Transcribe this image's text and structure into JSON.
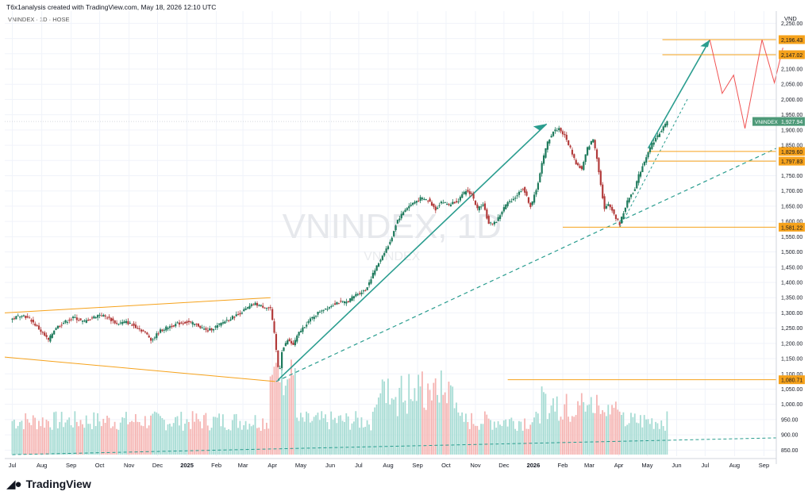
{
  "header": {
    "caption": "T6x1analysis created with TradingView.com, May 18, 2026 12:10 UTC",
    "symbol_line": "VNINDEX · 1D · HOSE"
  },
  "footer": {
    "logo_icon": "tradingview-logo-icon",
    "brand": "TradingView"
  },
  "chart_data": {
    "type": "candlestick",
    "watermark": "VNINDEX, 1D",
    "watermark_sub": "VNINDEX",
    "ylabel": "VND",
    "ylim": [
      830,
      2290
    ],
    "y_ticks": [
      "850.00",
      "900.00",
      "950.00",
      "1,000.00",
      "1,050.00",
      "1,100.00",
      "1,150.00",
      "1,200.00",
      "1,250.00",
      "1,300.00",
      "1,350.00",
      "1,400.00",
      "1,450.00",
      "1,500.00",
      "1,550.00",
      "1,600.00",
      "1,650.00",
      "1,700.00",
      "1,750.00",
      "1,800.00",
      "1,850.00",
      "1,900.00",
      "1,950.00",
      "2,000.00",
      "2,050.00",
      "2,100.00",
      "2,150.00",
      "2,200.00",
      "2,250.00"
    ],
    "x_ticks": [
      {
        "label": "Jul",
        "day": 0
      },
      {
        "label": "Aug",
        "day": 31
      },
      {
        "label": "Sep",
        "day": 62
      },
      {
        "label": "Oct",
        "day": 92
      },
      {
        "label": "Nov",
        "day": 123
      },
      {
        "label": "Dec",
        "day": 153
      },
      {
        "label": "2025",
        "day": 184,
        "bold": true
      },
      {
        "label": "Feb",
        "day": 215
      },
      {
        "label": "Mar",
        "day": 243
      },
      {
        "label": "Apr",
        "day": 274
      },
      {
        "label": "May",
        "day": 304
      },
      {
        "label": "Jun",
        "day": 335
      },
      {
        "label": "Jul",
        "day": 365
      },
      {
        "label": "Aug",
        "day": 396
      },
      {
        "label": "Sep",
        "day": 427
      },
      {
        "label": "Oct",
        "day": 457
      },
      {
        "label": "Nov",
        "day": 488
      },
      {
        "label": "Dec",
        "day": 518
      },
      {
        "label": "2026",
        "day": 549,
        "bold": true
      },
      {
        "label": "Feb",
        "day": 580
      },
      {
        "label": "Mar",
        "day": 608
      },
      {
        "label": "Apr",
        "day": 639
      },
      {
        "label": "May",
        "day": 669
      },
      {
        "label": "Jun",
        "day": 700
      },
      {
        "label": "Jul",
        "day": 730
      },
      {
        "label": "Aug",
        "day": 761
      },
      {
        "label": "Sep",
        "day": 792
      }
    ],
    "price_path": [
      [
        0,
        1280
      ],
      [
        10,
        1295
      ],
      [
        20,
        1275
      ],
      [
        30,
        1240
      ],
      [
        38,
        1210
      ],
      [
        45,
        1250
      ],
      [
        55,
        1270
      ],
      [
        65,
        1285
      ],
      [
        75,
        1270
      ],
      [
        85,
        1285
      ],
      [
        92,
        1295
      ],
      [
        100,
        1285
      ],
      [
        110,
        1265
      ],
      [
        120,
        1270
      ],
      [
        130,
        1255
      ],
      [
        140,
        1235
      ],
      [
        147,
        1210
      ],
      [
        155,
        1240
      ],
      [
        165,
        1255
      ],
      [
        175,
        1265
      ],
      [
        185,
        1270
      ],
      [
        195,
        1260
      ],
      [
        205,
        1240
      ],
      [
        215,
        1255
      ],
      [
        225,
        1275
      ],
      [
        235,
        1290
      ],
      [
        245,
        1310
      ],
      [
        255,
        1330
      ],
      [
        265,
        1320
      ],
      [
        272,
        1315
      ],
      [
        276,
        1230
      ],
      [
        279,
        1150
      ],
      [
        281,
        1095
      ],
      [
        284,
        1175
      ],
      [
        290,
        1210
      ],
      [
        296,
        1195
      ],
      [
        302,
        1235
      ],
      [
        310,
        1265
      ],
      [
        318,
        1290
      ],
      [
        326,
        1310
      ],
      [
        334,
        1320
      ],
      [
        342,
        1335
      ],
      [
        352,
        1335
      ],
      [
        362,
        1360
      ],
      [
        372,
        1375
      ],
      [
        382,
        1440
      ],
      [
        392,
        1500
      ],
      [
        398,
        1530
      ],
      [
        405,
        1600
      ],
      [
        414,
        1640
      ],
      [
        422,
        1660
      ],
      [
        430,
        1675
      ],
      [
        438,
        1670
      ],
      [
        446,
        1640
      ],
      [
        452,
        1665
      ],
      [
        460,
        1655
      ],
      [
        470,
        1670
      ],
      [
        478,
        1700
      ],
      [
        484,
        1690
      ],
      [
        490,
        1640
      ],
      [
        496,
        1660
      ],
      [
        502,
        1590
      ],
      [
        510,
        1600
      ],
      [
        520,
        1655
      ],
      [
        530,
        1680
      ],
      [
        538,
        1710
      ],
      [
        546,
        1650
      ],
      [
        552,
        1700
      ],
      [
        558,
        1790
      ],
      [
        564,
        1860
      ],
      [
        570,
        1895
      ],
      [
        576,
        1905
      ],
      [
        582,
        1880
      ],
      [
        588,
        1840
      ],
      [
        594,
        1790
      ],
      [
        600,
        1770
      ],
      [
        606,
        1840
      ],
      [
        612,
        1870
      ],
      [
        616,
        1810
      ],
      [
        620,
        1720
      ],
      [
        624,
        1640
      ],
      [
        628,
        1655
      ],
      [
        632,
        1640
      ],
      [
        636,
        1610
      ],
      [
        640,
        1592
      ],
      [
        645,
        1640
      ],
      [
        650,
        1680
      ],
      [
        655,
        1700
      ],
      [
        660,
        1750
      ],
      [
        665,
        1790
      ],
      [
        670,
        1830
      ],
      [
        675,
        1860
      ],
      [
        680,
        1880
      ],
      [
        685,
        1905
      ],
      [
        690,
        1927
      ]
    ],
    "last_price": "1,927.94",
    "last_price_value": 1927.94,
    "symbol_label": "VNINDEX",
    "levels": [
      {
        "value": 2196.43,
        "label": "2,196.43",
        "day_from": 685
      },
      {
        "value": 2147.02,
        "label": "2,147.02",
        "day_from": 685
      },
      {
        "value": 1829.6,
        "label": "1,829.60",
        "day_from": 670
      },
      {
        "value": 1797.83,
        "label": "1,797.83",
        "day_from": 670
      },
      {
        "value": 1581.22,
        "label": "1,581.22",
        "day_from": 580
      },
      {
        "value": 1080.71,
        "label": "1,080.71",
        "day_from": 522
      }
    ],
    "projection": [
      [
        735,
        2196
      ],
      [
        748,
        2020
      ],
      [
        760,
        2080
      ],
      [
        772,
        1905
      ],
      [
        790,
        2196
      ],
      [
        803,
        2055
      ],
      [
        812,
        2170
      ]
    ],
    "colors": {
      "up": "#26a69a",
      "down": "#ef5350",
      "candle_up": "#1e7a5c",
      "candle_down": "#b23b3b",
      "level": "#f6a21b",
      "trend": "#2a9d8f",
      "projection": "#f05252",
      "wedge": "#f6a21b",
      "last_price_bg": "#4e9a79"
    }
  }
}
